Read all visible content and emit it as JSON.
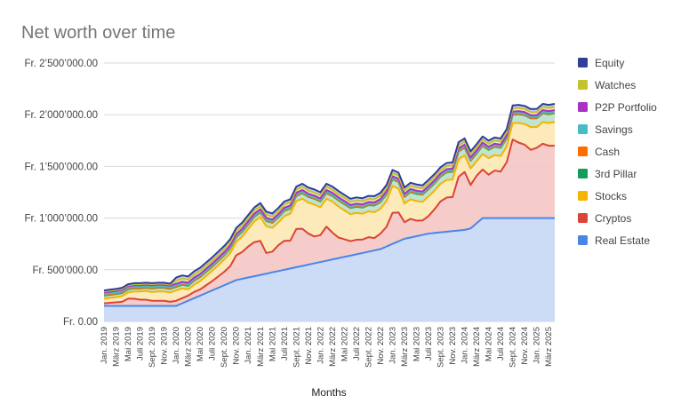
{
  "chart_data": {
    "type": "area",
    "stacked": true,
    "title": "Net worth over time",
    "xlabel": "Months",
    "ylabel": "",
    "ylim": [
      0,
      2500000
    ],
    "y_ticks": [
      0,
      500000,
      1000000,
      1500000,
      2000000,
      2500000
    ],
    "y_tick_labels": [
      "Fr. 0.00",
      "Fr. 500’000.00",
      "Fr. 1’000’000.00",
      "Fr. 1’500’000.00",
      "Fr. 2’000’000.00",
      "Fr. 2’500’000.00"
    ],
    "grid": true,
    "legend_position": "right",
    "categories": [
      "Jan. 2019",
      "Feb. 2019",
      "März 2019",
      "Apr. 2019",
      "Mai 2019",
      "Juni 2019",
      "Juli 2019",
      "Aug. 2019",
      "Sept. 2019",
      "Okt. 2019",
      "Nov. 2019",
      "Dez. 2019",
      "Jan. 2020",
      "Feb. 2020",
      "März 2020",
      "Apr. 2020",
      "Mai 2020",
      "Juni 2020",
      "Juli 2020",
      "Aug. 2020",
      "Sept. 2020",
      "Okt. 2020",
      "Nov. 2020",
      "Dez. 2020",
      "Jan. 2021",
      "Feb. 2021",
      "März 2021",
      "Apr. 2021",
      "Mai 2021",
      "Juni 2021",
      "Juli 2021",
      "Aug. 2021",
      "Sept. 2021",
      "Okt. 2021",
      "Nov. 2021",
      "Dez. 2021",
      "Jan. 2022",
      "Feb. 2022",
      "März 2022",
      "Apr. 2022",
      "Mai 2022",
      "Juni 2022",
      "Juli 2022",
      "Aug. 2022",
      "Sept. 2022",
      "Okt. 2022",
      "Nov. 2022",
      "Dez. 2022",
      "Jan. 2023",
      "Feb. 2023",
      "März 2023",
      "Apr. 2023",
      "Mai 2023",
      "Juni 2023",
      "Juli 2023",
      "Aug. 2023",
      "Sept. 2023",
      "Okt. 2023",
      "Nov. 2023",
      "Dez. 2023",
      "Jan. 2024",
      "Feb. 2024",
      "März 2024",
      "Apr. 2024",
      "Mai 2024",
      "Juni 2024",
      "Juli 2024",
      "Aug. 2024",
      "Sept. 2024",
      "Okt. 2024",
      "Nov. 2024",
      "Dez. 2024",
      "Jan. 2025",
      "Feb. 2025",
      "März 2025",
      "Apr. 2025"
    ],
    "x_tick_labels": [
      "Jan. 2019",
      "März 2019",
      "Mai 2019",
      "Juli 2019",
      "Sept. 2019",
      "Nov. 2019",
      "Jan. 2020",
      "März 2020",
      "Mai 2020",
      "Juli 2020",
      "Sept. 2020",
      "Nov. 2020",
      "Jan. 2021",
      "März 2021",
      "Mai 2021",
      "Juli 2021",
      "Sept. 2021",
      "Nov. 2021",
      "Jan. 2022",
      "März 2022",
      "Mai 2022",
      "Juli 2022",
      "Sept. 2022",
      "Nov. 2022",
      "Jan. 2023",
      "März 2023",
      "Mai 2023",
      "Juli 2023",
      "Sept. 2023",
      "Nov. 2023",
      "Jan. 2024",
      "März 2024",
      "Mai 2024",
      "Juli 2024",
      "Sept. 2024",
      "Nov. 2024",
      "Jan. 2025",
      "März 2025"
    ],
    "series": [
      {
        "name": "Real Estate",
        "color": "#4a86e8",
        "fill": "#c6d8f6",
        "values": [
          150000,
          150000,
          150000,
          150000,
          150000,
          150000,
          150000,
          150000,
          150000,
          150000,
          150000,
          150000,
          150000,
          175000,
          200000,
          225000,
          250000,
          275000,
          300000,
          325000,
          350000,
          375000,
          400000,
          412000,
          425000,
          437000,
          450000,
          462000,
          475000,
          487000,
          500000,
          512000,
          525000,
          537000,
          550000,
          562000,
          575000,
          587000,
          600000,
          612000,
          625000,
          637000,
          650000,
          662000,
          675000,
          687000,
          700000,
          725000,
          750000,
          775000,
          800000,
          812000,
          825000,
          837000,
          850000,
          856000,
          862000,
          868000,
          874000,
          880000,
          886000,
          900000,
          950000,
          1000000,
          1000000,
          1000000,
          1000000,
          1000000,
          1000000,
          1000000,
          1000000,
          1000000,
          1000000,
          1000000,
          1000000,
          1000000
        ]
      },
      {
        "name": "Cryptos",
        "color": "#db4437",
        "fill": "#f4c7c3",
        "values": [
          25000,
          30000,
          35000,
          40000,
          70000,
          70000,
          60000,
          60000,
          50000,
          50000,
          50000,
          40000,
          50000,
          50000,
          50000,
          60000,
          60000,
          75000,
          90000,
          110000,
          130000,
          160000,
          240000,
          260000,
          300000,
          330000,
          330000,
          200000,
          200000,
          250000,
          280000,
          270000,
          370000,
          360000,
          300000,
          260000,
          260000,
          330000,
          260000,
          200000,
          170000,
          140000,
          140000,
          130000,
          140000,
          120000,
          150000,
          190000,
          300000,
          280000,
          160000,
          180000,
          150000,
          140000,
          170000,
          230000,
          300000,
          330000,
          330000,
          520000,
          560000,
          420000,
          460000,
          470000,
          420000,
          460000,
          450000,
          540000,
          760000,
          730000,
          710000,
          660000,
          680000,
          720000,
          700000,
          700000
        ]
      },
      {
        "name": "Stocks",
        "color": "#f4b400",
        "fill": "#fce8b2",
        "values": [
          45000,
          48000,
          50000,
          55000,
          60000,
          70000,
          80000,
          85000,
          85000,
          90000,
          90000,
          90000,
          100000,
          95000,
          60000,
          70000,
          80000,
          90000,
          100000,
          110000,
          120000,
          125000,
          130000,
          150000,
          170000,
          200000,
          230000,
          260000,
          230000,
          220000,
          240000,
          260000,
          270000,
          290000,
          300000,
          310000,
          270000,
          270000,
          300000,
          300000,
          280000,
          260000,
          260000,
          250000,
          250000,
          250000,
          240000,
          250000,
          260000,
          230000,
          180000,
          190000,
          190000,
          180000,
          190000,
          180000,
          170000,
          170000,
          170000,
          170000,
          160000,
          160000,
          140000,
          150000,
          160000,
          150000,
          150000,
          150000,
          160000,
          190000,
          200000,
          220000,
          200000,
          210000,
          220000,
          230000
        ]
      },
      {
        "name": "3rd Pillar",
        "color": "#0f9d58",
        "fill": "#b7e1cd",
        "values": [
          30000,
          30000,
          30000,
          30000,
          30000,
          30000,
          30000,
          30000,
          35000,
          35000,
          35000,
          35000,
          35000,
          35000,
          35000,
          40000,
          40000,
          40000,
          40000,
          40000,
          40000,
          45000,
          45000,
          45000,
          45000,
          45000,
          45000,
          50000,
          50000,
          50000,
          50000,
          50000,
          50000,
          55000,
          55000,
          55000,
          55000,
          55000,
          55000,
          60000,
          60000,
          60000,
          60000,
          60000,
          60000,
          65000,
          65000,
          65000,
          65000,
          65000,
          65000,
          70000,
          70000,
          70000,
          70000,
          70000,
          70000,
          75000,
          75000,
          75000,
          75000,
          75000,
          75000,
          80000,
          80000,
          80000,
          80000,
          80000,
          80000,
          85000,
          85000,
          85000,
          85000,
          85000,
          85000,
          85000
        ]
      },
      {
        "name": "Cash",
        "color": "#ff6d01",
        "fill": "#ffd0b0",
        "values": [
          5000,
          5000,
          5000,
          5000,
          5000,
          5000,
          5000,
          5000,
          5000,
          5000,
          5000,
          5000,
          5000,
          5000,
          5000,
          5000,
          5000,
          5000,
          5000,
          5000,
          5000,
          5000,
          5000,
          5000,
          5000,
          5000,
          5000,
          5000,
          5000,
          5000,
          5000,
          5000,
          5000,
          5000,
          5000,
          5000,
          5000,
          5000,
          5000,
          5000,
          5000,
          5000,
          5000,
          5000,
          5000,
          5000,
          5000,
          5000,
          5000,
          5000,
          5000,
          5000,
          5000,
          5000,
          5000,
          5000,
          5000,
          5000,
          5000,
          5000,
          5000,
          5000,
          5000,
          5000,
          5000,
          5000,
          5000,
          5000,
          5000,
          5000,
          5000,
          5000,
          5000,
          5000,
          5000,
          5000
        ]
      },
      {
        "name": "Savings",
        "color": "#46bdc6",
        "fill": "#c0e8eb",
        "values": [
          10000,
          10000,
          10000,
          10000,
          10000,
          10000,
          10000,
          10000,
          10000,
          10000,
          10000,
          10000,
          10000,
          10000,
          10000,
          10000,
          10000,
          10000,
          10000,
          10000,
          10000,
          10000,
          10000,
          10000,
          10000,
          10000,
          10000,
          10000,
          10000,
          10000,
          10000,
          10000,
          10000,
          10000,
          10000,
          10000,
          10000,
          10000,
          10000,
          10000,
          10000,
          10000,
          10000,
          10000,
          10000,
          10000,
          10000,
          10000,
          10000,
          10000,
          10000,
          10000,
          10000,
          10000,
          10000,
          10000,
          10000,
          10000,
          10000,
          10000,
          10000,
          10000,
          10000,
          10000,
          10000,
          10000,
          10000,
          10000,
          10000,
          10000,
          10000,
          10000,
          10000,
          10000,
          10000,
          10000
        ]
      },
      {
        "name": "P2P Portfolio",
        "color": "#ab30c4",
        "fill": "#e2c2ea",
        "values": [
          15000,
          15000,
          15000,
          15000,
          15000,
          15000,
          15000,
          15000,
          15000,
          15000,
          15000,
          15000,
          15000,
          15000,
          15000,
          15000,
          15000,
          15000,
          15000,
          15000,
          15000,
          15000,
          15000,
          15000,
          15000,
          15000,
          15000,
          15000,
          15000,
          15000,
          15000,
          15000,
          15000,
          15000,
          15000,
          15000,
          15000,
          15000,
          15000,
          15000,
          15000,
          15000,
          15000,
          15000,
          15000,
          15000,
          15000,
          15000,
          15000,
          15000,
          15000,
          15000,
          15000,
          15000,
          15000,
          15000,
          15000,
          15000,
          15000,
          15000,
          15000,
          15000,
          15000,
          15000,
          15000,
          15000,
          15000,
          15000,
          15000,
          15000,
          15000,
          15000,
          15000,
          15000,
          15000,
          15000
        ]
      },
      {
        "name": "Watches",
        "color": "#c3c32c",
        "fill": "#ebedbd",
        "values": [
          10000,
          10000,
          10000,
          10000,
          10000,
          10000,
          10000,
          10000,
          10000,
          10000,
          10000,
          10000,
          30000,
          30000,
          30000,
          30000,
          30000,
          30000,
          30000,
          30000,
          30000,
          30000,
          30000,
          30000,
          30000,
          30000,
          30000,
          30000,
          30000,
          30000,
          30000,
          30000,
          30000,
          30000,
          30000,
          30000,
          30000,
          30000,
          30000,
          30000,
          30000,
          30000,
          30000,
          30000,
          30000,
          30000,
          30000,
          30000,
          30000,
          30000,
          30000,
          30000,
          30000,
          30000,
          30000,
          30000,
          30000,
          30000,
          30000,
          30000,
          30000,
          30000,
          30000,
          30000,
          30000,
          30000,
          30000,
          30000,
          30000,
          30000,
          30000,
          30000,
          30000,
          30000,
          30000,
          30000
        ]
      },
      {
        "name": "Equity",
        "color": "#2f3d9c",
        "fill": "#c4c8e6",
        "values": [
          10000,
          10000,
          10000,
          10000,
          10000,
          10000,
          10000,
          10000,
          10000,
          10000,
          10000,
          10000,
          30000,
          30000,
          30000,
          30000,
          30000,
          30000,
          30000,
          30000,
          30000,
          30000,
          30000,
          30000,
          30000,
          30000,
          30000,
          30000,
          30000,
          30000,
          30000,
          30000,
          30000,
          30000,
          30000,
          30000,
          30000,
          30000,
          30000,
          30000,
          30000,
          30000,
          30000,
          30000,
          30000,
          30000,
          30000,
          30000,
          30000,
          30000,
          30000,
          30000,
          30000,
          30000,
          30000,
          30000,
          30000,
          30000,
          30000,
          30000,
          30000,
          30000,
          30000,
          30000,
          30000,
          30000,
          30000,
          30000,
          30000,
          30000,
          30000,
          30000,
          30000,
          30000,
          30000,
          30000
        ]
      }
    ],
    "legend_order": [
      "Equity",
      "Watches",
      "P2P Portfolio",
      "Savings",
      "Cash",
      "3rd Pillar",
      "Stocks",
      "Cryptos",
      "Real Estate"
    ]
  }
}
